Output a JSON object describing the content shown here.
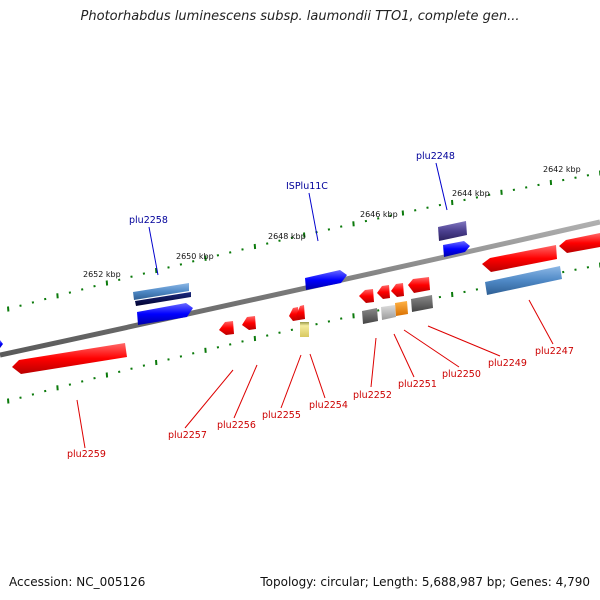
{
  "title": "Photorhabdus luminescens subsp. laumondii TTO1, complete gen...",
  "accession_text": "Accession: NC_005126",
  "summary_text": "Topology: circular; Length: 5,688,987 bp; Genes: 4,790",
  "scale_labels": [
    "2652 kbp",
    "2650 kbp",
    "2648 kbp",
    "2646 kbp",
    "2644 kbp",
    "2642 kbp"
  ],
  "colors": {
    "forward_gene": "#0000ff",
    "reverse_gene": "#ff0000",
    "forward_label": "#00009a",
    "reverse_label": "#cc0000",
    "backbone": "#8c8c8c",
    "tick": "#0b7a0b"
  },
  "genes": [
    {
      "name": "plu2259",
      "strand": "reverse",
      "color": "#ff0000"
    },
    {
      "name": "plu2258",
      "strand": "forward",
      "color": "#4f89c6"
    },
    {
      "name": "plu2257",
      "strand": "reverse",
      "color": "#ff0000"
    },
    {
      "name": "plu2256",
      "strand": "reverse",
      "color": "#ff0000"
    },
    {
      "name": "plu2255",
      "strand": "reverse",
      "color": "#ff0000"
    },
    {
      "name": "plu2254",
      "strand": "reverse",
      "color": "#e8d87a"
    },
    {
      "name": "ISPlu11C",
      "strand": "forward",
      "color": "#0000ff"
    },
    {
      "name": "plu2252",
      "strand": "reverse",
      "color": "#666666"
    },
    {
      "name": "plu2251",
      "strand": "reverse",
      "color": "#bbbbbb"
    },
    {
      "name": "plu2250",
      "strand": "reverse",
      "color": "#ff8c00"
    },
    {
      "name": "plu2249",
      "strand": "reverse",
      "color": "#666666"
    },
    {
      "name": "plu2248",
      "strand": "forward",
      "color": "#4b3f8f"
    },
    {
      "name": "plu2247",
      "strand": "reverse",
      "color": "#4f89c6"
    }
  ]
}
